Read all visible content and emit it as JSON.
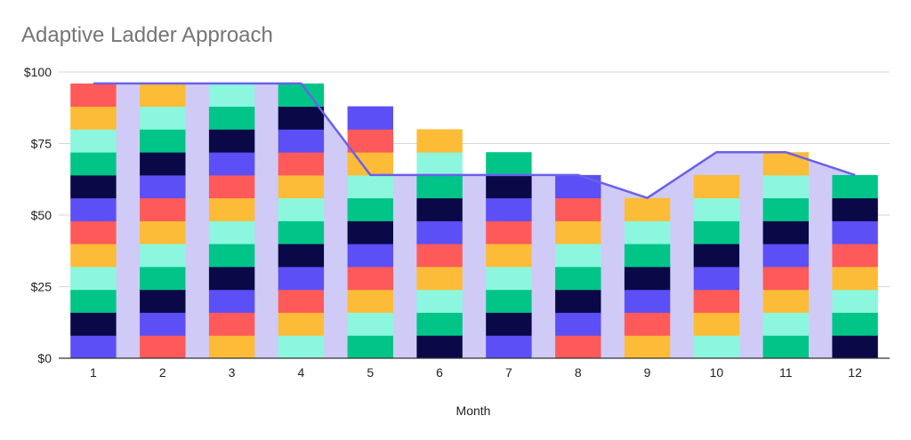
{
  "chart_data": {
    "type": "bar",
    "title": "Adaptive Ladder Approach",
    "xlabel": "Month",
    "ylabel": "",
    "categories": [
      "1",
      "2",
      "3",
      "4",
      "5",
      "6",
      "7",
      "8",
      "9",
      "10",
      "11",
      "12"
    ],
    "ylim": [
      0,
      100
    ],
    "yticks": [
      0,
      25,
      50,
      75,
      100
    ],
    "ytick_labels": [
      "$0",
      "$25",
      "$50",
      "$75",
      "$100"
    ],
    "grid": true,
    "legend": "none",
    "segment_value": 8,
    "segment_counts": [
      12,
      12,
      12,
      12,
      11,
      10,
      9,
      8,
      7,
      8,
      9,
      8
    ],
    "series": [
      {
        "type": "stacked-bar",
        "values": [
          96,
          96,
          96,
          96,
          88,
          80,
          72,
          64,
          56,
          64,
          72,
          64
        ]
      },
      {
        "type": "line",
        "values": [
          96,
          96,
          96,
          96,
          64,
          64,
          64,
          64,
          56,
          72,
          72,
          64
        ]
      }
    ],
    "colors": {
      "segment_palette": [
        "#5c4ff5",
        "#0a0847",
        "#00c587",
        "#8cf7de",
        "#fdbc37",
        "#ff5a5a"
      ],
      "line": "#6a60ec",
      "area_fill": "#cfcbf6",
      "grid": "#d6d6d6",
      "axis": "#333333"
    }
  }
}
